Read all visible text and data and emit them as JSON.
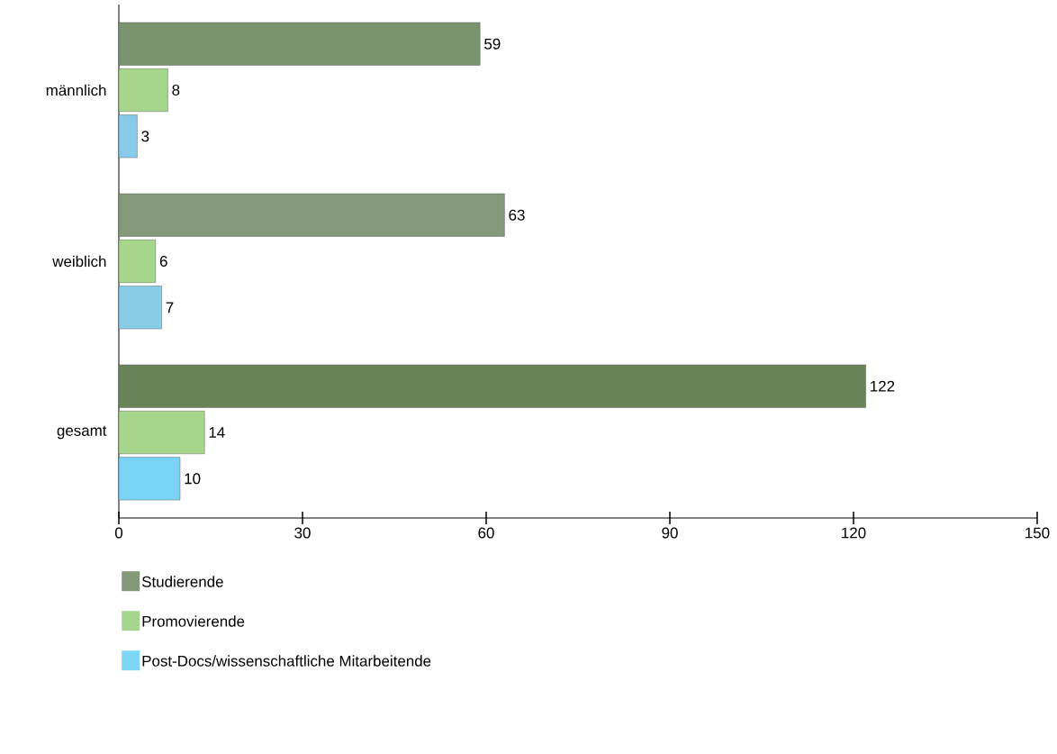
{
  "chart_data": {
    "type": "bar",
    "orientation": "horizontal",
    "categories": [
      "männlich",
      "weiblich",
      "gesamt"
    ],
    "series": [
      {
        "name": "Studierende",
        "color": "#84997a",
        "colors": [
          "#7a9470",
          "#849a78",
          "#6a8458"
        ],
        "values": [
          59,
          63,
          122
        ]
      },
      {
        "name": "Promovierende",
        "color": "#a6d68e",
        "colors": [
          "#a6d58c",
          "#a6d58c",
          "#a6d58c"
        ],
        "values": [
          8,
          6,
          14
        ]
      },
      {
        "name": "Post-Docs/wissenschaftliche Mitarbeitende",
        "color": "#7dd6f5",
        "colors": [
          "#87cbe8",
          "#88cce8",
          "#79d4f6"
        ],
        "values": [
          3,
          7,
          10
        ]
      }
    ],
    "xlim": [
      0,
      150
    ],
    "xticks": [
      0,
      30,
      60,
      90,
      120,
      150
    ],
    "data_labels": true,
    "legend": "bottom left",
    "grid": false
  }
}
